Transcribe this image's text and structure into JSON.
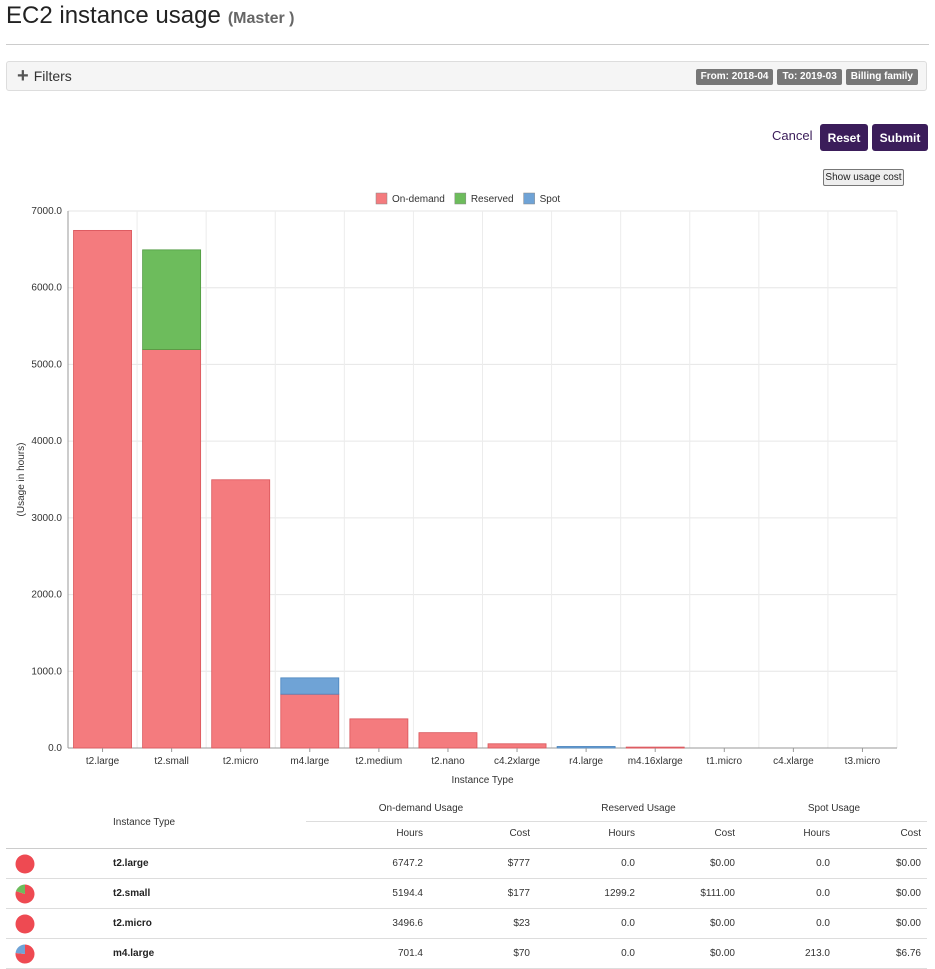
{
  "header": {
    "title": "EC2 instance usage",
    "subtitle": "(Master )"
  },
  "filters": {
    "label": "Filters",
    "badges": [
      "From: 2018-04",
      "To: 2019-03",
      "Billing family"
    ]
  },
  "actions": {
    "cancel_label": "Cancel",
    "reset_label": "Reset",
    "submit_label": "Submit",
    "usage_cost_label": "Show usage cost"
  },
  "colors": {
    "on_demand": "#f47b7e",
    "reserved": "#6dbc5c",
    "spot": "#6fa3d6",
    "button": "#3b1d5a"
  },
  "chart_data": {
    "type": "bar",
    "stacked": true,
    "categories": [
      "t2.large",
      "t2.small",
      "t2.micro",
      "m4.large",
      "t2.medium",
      "t2.nano",
      "c4.2xlarge",
      "r4.large",
      "m4.16xlarge",
      "t1.micro",
      "c4.xlarge",
      "t3.micro"
    ],
    "series": [
      {
        "name": "On-demand",
        "values": [
          6747.2,
          5194.4,
          3496.6,
          701.4,
          380,
          200,
          55,
          0,
          12,
          0,
          0,
          0
        ]
      },
      {
        "name": "Reserved",
        "values": [
          0,
          1299.2,
          0,
          0,
          0,
          0,
          0,
          0,
          0,
          0,
          0,
          0
        ]
      },
      {
        "name": "Spot",
        "values": [
          0,
          0,
          0,
          213.0,
          0,
          0,
          0,
          20,
          0,
          0,
          0,
          0
        ]
      }
    ],
    "xlabel": "Instance Type",
    "ylabel": "(Usage in hours)",
    "ylim": [
      0,
      7000
    ],
    "yticks": [
      "0.0",
      "1000.0",
      "2000.0",
      "3000.0",
      "4000.0",
      "5000.0",
      "6000.0",
      "7000.0"
    ],
    "grid": true,
    "legend_position": "top-center"
  },
  "table": {
    "type_header": "Instance Type",
    "groups": [
      "On-demand Usage",
      "Reserved Usage",
      "Spot Usage"
    ],
    "sub_headers": [
      "Hours",
      "Cost",
      "Hours",
      "Cost",
      "Hours",
      "Cost"
    ],
    "rows": [
      {
        "type": "t2.large",
        "cells": [
          "6747.2",
          "$777",
          "0.0",
          "$0.00",
          "0.0",
          "$0.00"
        ],
        "share": [
          1,
          0,
          0
        ]
      },
      {
        "type": "t2.small",
        "cells": [
          "5194.4",
          "$177",
          "1299.2",
          "$111.00",
          "0.0",
          "$0.00"
        ],
        "share": [
          0.8,
          0.2,
          0
        ]
      },
      {
        "type": "t2.micro",
        "cells": [
          "3496.6",
          "$23",
          "0.0",
          "$0.00",
          "0.0",
          "$0.00"
        ],
        "share": [
          1,
          0,
          0
        ]
      },
      {
        "type": "m4.large",
        "cells": [
          "701.4",
          "$70",
          "0.0",
          "$0.00",
          "213.0",
          "$6.76"
        ],
        "share": [
          0.767,
          0,
          0.233
        ]
      }
    ]
  }
}
